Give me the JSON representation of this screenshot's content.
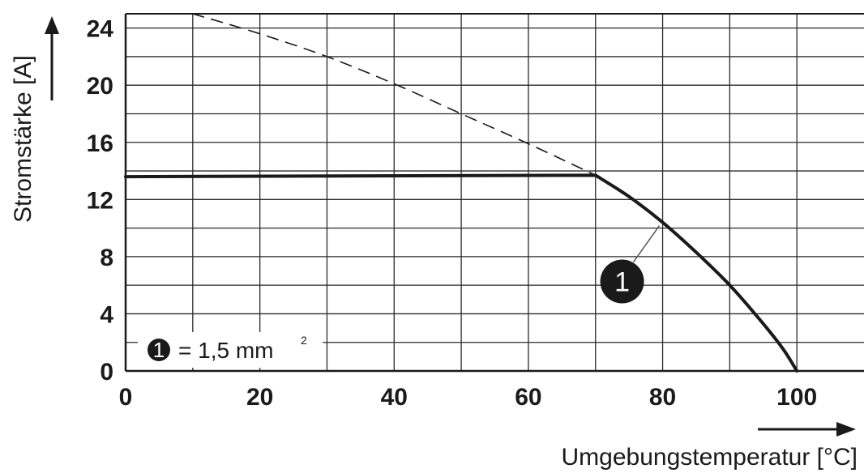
{
  "chart_data": {
    "type": "line",
    "xlabel": "Umgebungstemperatur [°C]",
    "ylabel": "Stromstärke [A]",
    "xlim": [
      0,
      110
    ],
    "ylim": [
      0,
      25
    ],
    "x_ticks": [
      "0",
      "20",
      "40",
      "60",
      "80",
      "100"
    ],
    "y_ticks": [
      "0",
      "4",
      "8",
      "12",
      "16",
      "20",
      "24"
    ],
    "x_tick_values": [
      0,
      20,
      40,
      60,
      80,
      100
    ],
    "y_tick_values": [
      0,
      4,
      8,
      12,
      16,
      20,
      24
    ],
    "grid": true,
    "series": [
      {
        "style": "solid",
        "x": [
          0,
          70,
          75,
          80,
          85,
          90,
          95,
          98,
          100
        ],
        "y": [
          13.6,
          13.7,
          12.2,
          10.4,
          8.3,
          6.0,
          3.3,
          1.5,
          0
        ]
      },
      {
        "style": "dashed",
        "x": [
          10,
          20,
          30,
          40,
          50,
          60,
          70
        ],
        "y": [
          25.0,
          23.6,
          22.0,
          20.1,
          18.0,
          15.9,
          13.7
        ]
      }
    ],
    "annotations": [
      {
        "marker": "1",
        "x": 80,
        "y": 10.4
      }
    ],
    "legend": {
      "marker": "1",
      "text": "= 1,5 mm",
      "superscript": "2",
      "placement": "bottom-left"
    }
  }
}
